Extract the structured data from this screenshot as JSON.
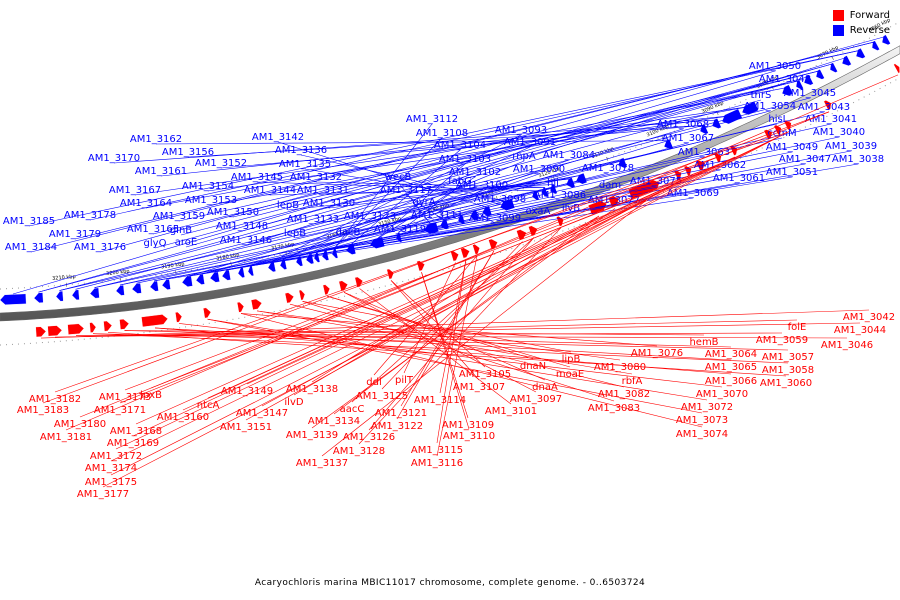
{
  "legend": {
    "forward_label": "Forward",
    "reverse_label": "Reverse",
    "forward_color": "#ff0000",
    "reverse_color": "#0000ff"
  },
  "caption": "Acaryochloris marina MBIC11017 chromosome, complete genome. - 0..6503724",
  "ticks": [
    "3060 kbp",
    "3070 kbp",
    "3080 kbp",
    "3090 kbp",
    "3100 kbp",
    "3110 kbp",
    "3120 kbp",
    "3130 kbp",
    "3140 kbp",
    "3150 kbp",
    "3160 kbp",
    "3170 kbp",
    "3180 kbp",
    "3190 kbp",
    "3200 kbp",
    "3210 kbp"
  ],
  "reverse_labels": [
    "AM1_3050",
    "AM1_3048",
    "thrS",
    "AM1_3045",
    "hisI",
    "AM1_3054",
    "AM1_3043",
    "ccmM",
    "AM1_3041",
    "AM1_3049",
    "AM1_3040",
    "AM1_3047",
    "AM1_3039",
    "AM1_3051",
    "AM1_3038",
    "AM1_3068",
    "AM1_3067",
    "AM1_3063",
    "AM1_3062",
    "AM1_3061",
    "AM1_3075",
    "AM1_3069",
    "AM1_3078",
    "dam",
    "AM1_3077",
    "AM1_3093",
    "AM1_3091",
    "rnpA",
    "AM1_3084",
    "AM1_3090",
    "hli",
    "AM1_3086",
    "oxaA",
    "ilvB",
    "AM1_3112",
    "AM1_3108",
    "AM1_3104",
    "AM1_3103",
    "AM1_3102",
    "fabG",
    "AM1_3100",
    "wecB",
    "AM1_3117",
    "AM1_3098",
    "gyrA",
    "AM1_3111",
    "AM1_3099",
    "AM1_3119",
    "AM1_3142",
    "AM1_3136",
    "AM1_3135",
    "AM1_3145",
    "AM1_3132",
    "AM1_3144",
    "AM1_3131",
    "lepB",
    "AM1_3130",
    "AM1_3133",
    "lepB",
    "AM1_3123",
    "dacB",
    "AM1_3162",
    "AM1_3156",
    "AM1_3152",
    "AM1_3170",
    "AM1_3161",
    "AM1_3154",
    "AM1_3167",
    "AM1_3153",
    "AM1_3164",
    "AM1_3150",
    "AM1_3159",
    "AM1_3148",
    "AM1_3165",
    "glnB",
    "glyQ",
    "aroE",
    "AM1_3146",
    "AM1_3178",
    "AM1_3185",
    "AM1_3179",
    "AM1_3184",
    "AM1_3176"
  ],
  "forward_labels": [
    "AM1_3042",
    "AM1_3044",
    "folE",
    "AM1_3046",
    "AM1_3059",
    "AM1_3057",
    "AM1_3058",
    "AM1_3060",
    "hemB",
    "AM1_3064",
    "AM1_3065",
    "AM1_3066",
    "AM1_3070",
    "AM1_3072",
    "AM1_3073",
    "AM1_3074",
    "AM1_3076",
    "AM1_3080",
    "rbfA",
    "AM1_3082",
    "AM1_3083",
    "lipB",
    "moaE",
    "dnaN",
    "dnaA",
    "AM1_3097",
    "AM1_3101",
    "AM1_3105",
    "AM1_3107",
    "AM1_3109",
    "AM1_3110",
    "pilT",
    "AM1_3114",
    "AM1_3115",
    "AM1_3116",
    "ddl",
    "AM1_3121",
    "AM1_3122",
    "AM1_3125",
    "aacC",
    "AM1_3126",
    "AM1_3128",
    "AM1_3138",
    "AM1_3134",
    "ilvD",
    "AM1_3139",
    "AM1_3137",
    "AM1_3149",
    "AM1_3147",
    "AM1_3151",
    "ntcA",
    "AM1_3160",
    "lpxB",
    "AM1_3173",
    "AM1_3171",
    "AM1_3168",
    "AM1_3169",
    "AM1_3172",
    "AM1_3174",
    "AM1_3175",
    "AM1_3177",
    "AM1_3182",
    "AM1_3183",
    "AM1_3180",
    "AM1_3181"
  ]
}
